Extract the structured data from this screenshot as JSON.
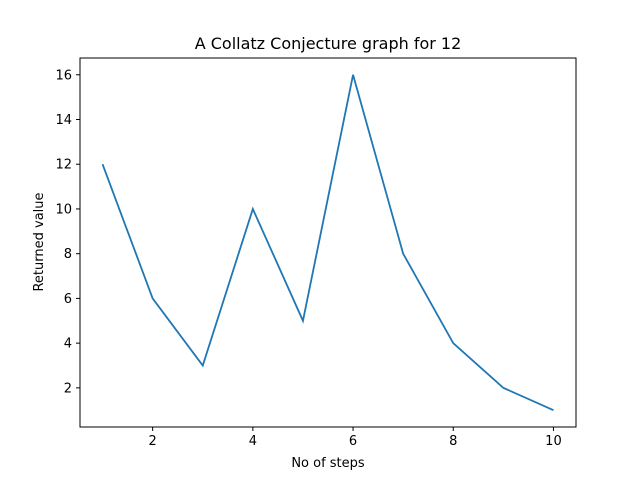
{
  "chart_data": {
    "type": "line",
    "title": "A Collatz Conjecture graph for 12",
    "xlabel": "No of steps",
    "ylabel": "Returned value",
    "x": [
      1,
      2,
      3,
      4,
      5,
      6,
      7,
      8,
      9,
      10
    ],
    "series": [
      {
        "values": [
          12,
          6,
          3,
          10,
          5,
          16,
          8,
          4,
          2,
          1
        ],
        "color": "#1f77b4"
      }
    ],
    "xlim": [
      0.55,
      10.45
    ],
    "ylim": [
      0.25,
      16.75
    ],
    "xticks": [
      2,
      4,
      6,
      8,
      10
    ],
    "xtick_labels": [
      "2",
      "4",
      "6",
      "8",
      "10"
    ],
    "yticks": [
      2,
      4,
      6,
      8,
      10,
      12,
      14,
      16
    ],
    "ytick_labels": [
      "2",
      "4",
      "6",
      "8",
      "10",
      "12",
      "14",
      "16"
    ],
    "grid": false,
    "legend": "none"
  }
}
